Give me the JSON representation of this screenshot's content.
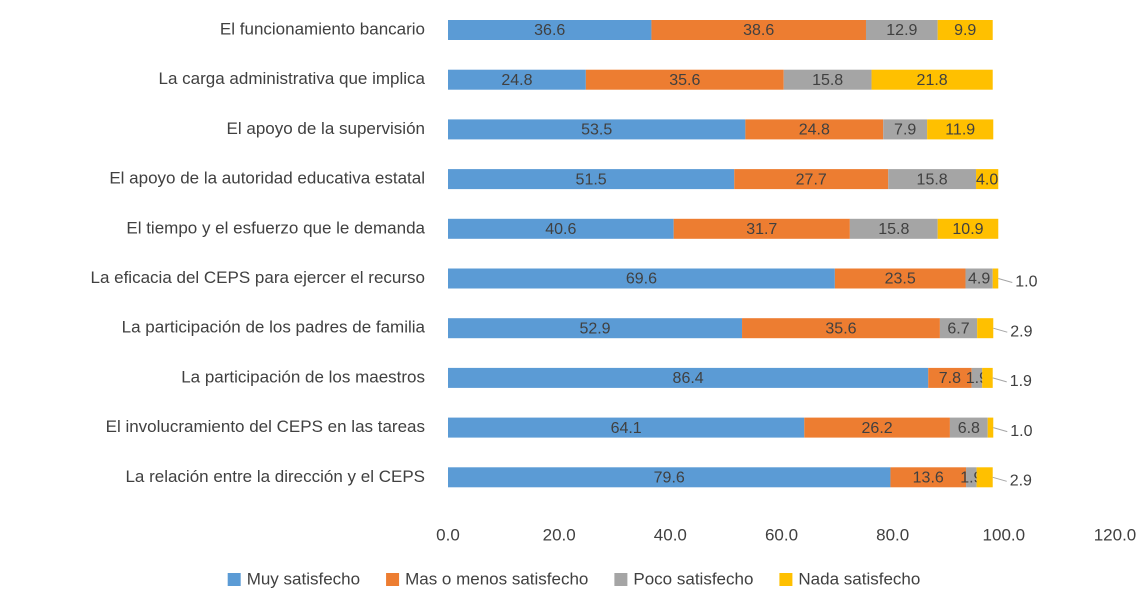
{
  "chart_data": {
    "type": "stacked-bar-horizontal",
    "categories": [
      "El funcionamiento bancario",
      "La carga administrativa que implica",
      "El apoyo de la supervisión",
      "El apoyo de la autoridad educativa estatal",
      "El tiempo y el esfuerzo que le demanda",
      "La eficacia del CEPS para ejercer el recurso",
      "La participación de los padres de familia",
      "La participación de los maestros",
      "El involucramiento del CEPS en las tareas",
      "La relación entre la dirección y el CEPS"
    ],
    "series": [
      {
        "name": "Muy satisfecho",
        "color": "#5b9bd5",
        "values": [
          36.6,
          24.8,
          53.5,
          51.5,
          40.6,
          69.6,
          52.9,
          86.4,
          64.1,
          79.6
        ],
        "value_labels": [
          "36.6",
          "24.8",
          "53.5",
          "51.5",
          "40.6",
          "69.6",
          "52.9",
          "86.4",
          "64.1",
          "79.6"
        ]
      },
      {
        "name": "Mas o menos satisfecho",
        "color": "#ed7d31",
        "values": [
          38.6,
          35.6,
          24.8,
          27.7,
          31.7,
          23.5,
          35.6,
          7.8,
          26.2,
          13.6
        ],
        "value_labels": [
          "38.6",
          "35.6",
          "24.8",
          "27.7",
          "31.7",
          "23.5",
          "35.6",
          "7.8",
          "26.2",
          "13.6"
        ]
      },
      {
        "name": "Poco satisfecho",
        "color": "#a5a5a5",
        "values": [
          12.9,
          15.8,
          7.9,
          15.8,
          15.8,
          4.9,
          6.7,
          1.9,
          6.8,
          1.9
        ],
        "value_labels": [
          "12.9",
          "15.8",
          "7.9",
          "15.8",
          "15.8",
          "4.9",
          "6.7",
          "1.9",
          "6.8",
          "1.9"
        ]
      },
      {
        "name": "Nada satisfecho",
        "color": "#ffc000",
        "values": [
          9.9,
          21.8,
          11.9,
          4.0,
          10.9,
          1.0,
          2.9,
          1.9,
          1.0,
          2.9
        ],
        "value_labels": [
          "9.9",
          "21.8",
          "11.9",
          "4.0",
          "10.9",
          "1.0",
          "2.9",
          "1.9",
          "1.0",
          "2.9"
        ]
      }
    ],
    "xlim": [
      0,
      120
    ],
    "xticks": [
      {
        "value": 0,
        "label": "0.0"
      },
      {
        "value": 20,
        "label": "20.0"
      },
      {
        "value": 40,
        "label": "40.0"
      },
      {
        "value": 60,
        "label": "60.0"
      },
      {
        "value": 80,
        "label": "80.0"
      },
      {
        "value": 100,
        "label": "100.0"
      },
      {
        "value": 120,
        "label": "120.0"
      }
    ],
    "grid": false,
    "legend": "bottom"
  }
}
